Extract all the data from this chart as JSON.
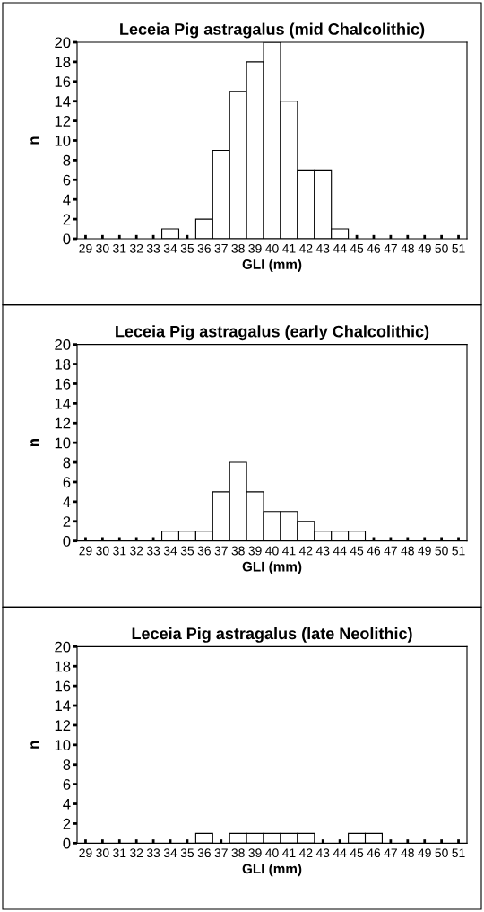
{
  "chart_data": [
    {
      "type": "histogram",
      "title": "Leceia Pig astragalus (mid Chalcolithic)",
      "xlabel": "GLI (mm)",
      "ylabel": "n",
      "color": "#ffffff",
      "bins": [
        28.5,
        29.5,
        30.5,
        31.5,
        32.5,
        33.5,
        34.5,
        35.5,
        36.5,
        37.5,
        38.5,
        39.5,
        40.5,
        41.5,
        42.5,
        43.5,
        44.5,
        45.5,
        46.5,
        47.5,
        48.5,
        49.5,
        50.5,
        51.5
      ],
      "values": [
        0,
        0,
        0,
        0,
        0,
        1,
        0,
        2,
        9,
        15,
        18,
        20,
        14,
        7,
        7,
        1,
        0,
        0,
        0,
        0,
        0,
        0,
        0
      ],
      "xlim": [
        28.5,
        51.5
      ],
      "ylim": [
        0,
        20
      ],
      "xticks": [
        29,
        30,
        31,
        32,
        33,
        34,
        35,
        36,
        37,
        38,
        39,
        40,
        41,
        42,
        43,
        44,
        45,
        46,
        47,
        48,
        49,
        50,
        51
      ],
      "yticks": [
        0,
        2,
        4,
        6,
        8,
        10,
        12,
        14,
        16,
        18,
        20
      ]
    },
    {
      "type": "histogram",
      "title": "Leceia Pig astragalus (early Chalcolithic)",
      "xlabel": "GLI (mm)",
      "ylabel": "n",
      "color": "#ffffff",
      "bins": [
        28.5,
        29.5,
        30.5,
        31.5,
        32.5,
        33.5,
        34.5,
        35.5,
        36.5,
        37.5,
        38.5,
        39.5,
        40.5,
        41.5,
        42.5,
        43.5,
        44.5,
        45.5,
        46.5,
        47.5,
        48.5,
        49.5,
        50.5,
        51.5
      ],
      "values": [
        0,
        0,
        0,
        0,
        0,
        1,
        1,
        1,
        5,
        8,
        5,
        3,
        3,
        2,
        1,
        1,
        1,
        0,
        0,
        0,
        0,
        0,
        0
      ],
      "xlim": [
        28.5,
        51.5
      ],
      "ylim": [
        0,
        20
      ],
      "xticks": [
        29,
        30,
        31,
        32,
        33,
        34,
        35,
        36,
        37,
        38,
        39,
        40,
        41,
        42,
        43,
        44,
        45,
        46,
        47,
        48,
        49,
        50,
        51
      ],
      "yticks": [
        0,
        2,
        4,
        6,
        8,
        10,
        12,
        14,
        16,
        18,
        20
      ]
    },
    {
      "type": "histogram",
      "title": "Leceia Pig astragalus (late Neolithic)",
      "xlabel": "GLI (mm)",
      "ylabel": "n",
      "color": "#ffffff",
      "bins": [
        28.5,
        29.5,
        30.5,
        31.5,
        32.5,
        33.5,
        34.5,
        35.5,
        36.5,
        37.5,
        38.5,
        39.5,
        40.5,
        41.5,
        42.5,
        43.5,
        44.5,
        45.5,
        46.5,
        47.5,
        48.5,
        49.5,
        50.5,
        51.5
      ],
      "values": [
        0,
        0,
        0,
        0,
        0,
        0,
        0,
        1,
        0,
        1,
        1,
        1,
        1,
        1,
        0,
        0,
        1,
        1,
        0,
        0,
        0,
        0,
        0
      ],
      "xlim": [
        28.5,
        51.5
      ],
      "ylim": [
        0,
        20
      ],
      "xticks": [
        29,
        30,
        31,
        32,
        33,
        34,
        35,
        36,
        37,
        38,
        39,
        40,
        41,
        42,
        43,
        44,
        45,
        46,
        47,
        48,
        49,
        50,
        51
      ],
      "yticks": [
        0,
        2,
        4,
        6,
        8,
        10,
        12,
        14,
        16,
        18,
        20
      ]
    }
  ]
}
